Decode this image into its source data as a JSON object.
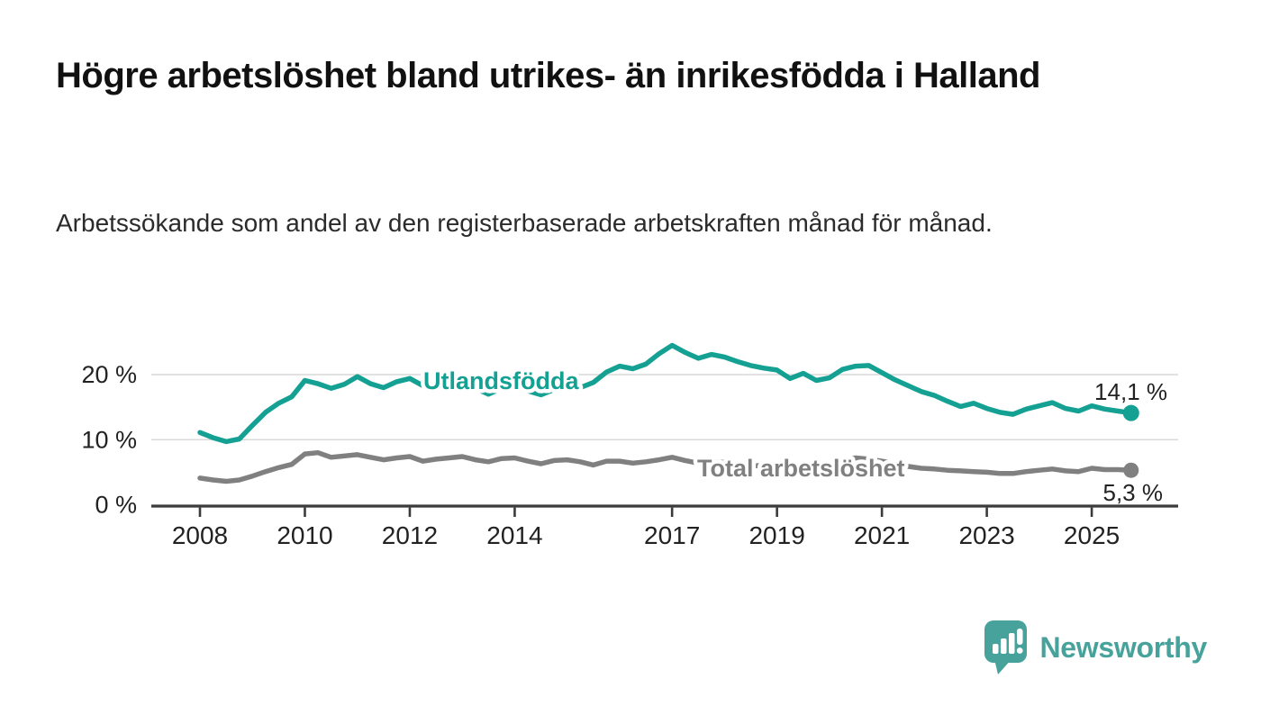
{
  "header": {
    "title": "Högre arbetslöshet bland utrikes- än inrikesfödda i Halland",
    "subtitle": "Arbetssökande som andel av den registerbaserade arbetskraften månad för månad."
  },
  "chart_data": {
    "type": "line",
    "title": "Högre arbetslöshet bland utrikes- än inrikesfödda i Halland",
    "subtitle": "Arbetssökande som andel av den registerbaserade arbetskraften månad för månad.",
    "x_unit": "year",
    "x_start": 2008,
    "x_step": 0.25,
    "x_ticks": [
      2008,
      2010,
      2012,
      2014,
      2017,
      2019,
      2021,
      2023,
      2025
    ],
    "y_ticks": [
      {
        "value": 0,
        "label": "0 %"
      },
      {
        "value": 10,
        "label": "10 %"
      },
      {
        "value": 20,
        "label": "20 %"
      }
    ],
    "ylim": [
      0,
      26
    ],
    "grid": "horizontal",
    "grid_color": "#d9d9d9",
    "axis_color": "#3b3b3b",
    "tick_label_color": "#222222",
    "series": [
      {
        "name": "Utlandsfödda",
        "color": "#14a092",
        "end_label": "14,1 %",
        "end_value": 14.1,
        "values": [
          11.1,
          10.3,
          9.7,
          10.1,
          12.2,
          14.2,
          15.6,
          16.6,
          19.1,
          18.6,
          17.9,
          18.5,
          19.7,
          18.6,
          18.0,
          18.9,
          19.4,
          18.3,
          18.9,
          18.6,
          18.9,
          17.9,
          17.0,
          17.9,
          18.3,
          17.5,
          16.9,
          17.7,
          18.2,
          18.0,
          18.8,
          20.4,
          21.3,
          20.9,
          21.6,
          23.2,
          24.5,
          23.4,
          22.5,
          23.1,
          22.7,
          22.0,
          21.4,
          21.0,
          20.7,
          19.4,
          20.2,
          19.1,
          19.5,
          20.8,
          21.3,
          21.4,
          20.3,
          19.2,
          18.3,
          17.4,
          16.8,
          15.9,
          15.1,
          15.6,
          14.8,
          14.2,
          13.9,
          14.7,
          15.2,
          15.7,
          14.8,
          14.4,
          15.2,
          14.7,
          14.4,
          14.1
        ]
      },
      {
        "name": "Total arbetslöshet",
        "color": "#808080",
        "end_label": "5,3 %",
        "end_value": 5.3,
        "values": [
          4.1,
          3.8,
          3.6,
          3.8,
          4.4,
          5.1,
          5.7,
          6.2,
          7.8,
          8.0,
          7.3,
          7.5,
          7.7,
          7.3,
          6.9,
          7.2,
          7.4,
          6.7,
          7.0,
          7.2,
          7.4,
          6.9,
          6.6,
          7.1,
          7.2,
          6.7,
          6.3,
          6.8,
          6.9,
          6.6,
          6.1,
          6.7,
          6.7,
          6.4,
          6.6,
          6.9,
          7.3,
          6.8,
          6.4,
          6.6,
          6.5,
          6.1,
          5.9,
          6.1,
          6.0,
          5.7,
          5.9,
          5.8,
          6.1,
          7.0,
          7.2,
          7.0,
          6.7,
          6.3,
          5.9,
          5.6,
          5.5,
          5.3,
          5.2,
          5.1,
          5.0,
          4.8,
          4.8,
          5.1,
          5.3,
          5.5,
          5.2,
          5.1,
          5.6,
          5.4,
          5.4,
          5.3
        ]
      }
    ]
  },
  "branding": {
    "logo_text": "Newsworthy",
    "logo_icon": "bar-chart-speech-bubble",
    "logo_color": "#46a29b"
  }
}
